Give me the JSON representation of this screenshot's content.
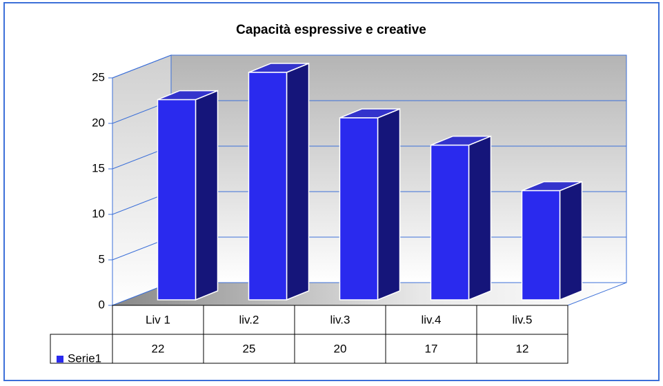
{
  "chart_data": {
    "type": "bar3d",
    "title": "Capacità espressive e creative",
    "categories": [
      "Liv  1",
      "liv.2",
      "liv.3",
      "liv.4",
      "liv.5"
    ],
    "series": [
      {
        "name": "Serie1",
        "color": "#2a2aee",
        "values": [
          22,
          25,
          20,
          17,
          12
        ]
      }
    ],
    "ylim": [
      0,
      25
    ],
    "yticks": [
      0,
      5,
      10,
      15,
      20,
      25
    ],
    "grid": true
  }
}
